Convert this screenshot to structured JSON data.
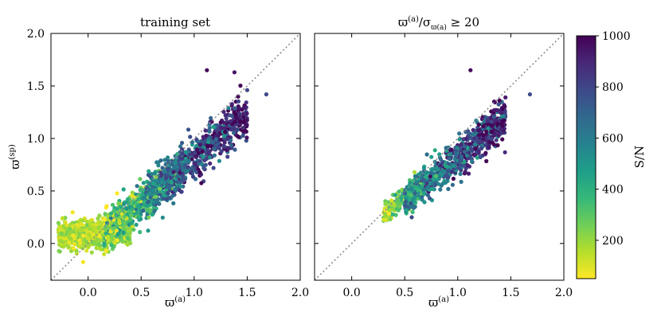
{
  "figure": {
    "colors": {
      "viridis": [
        "#fde725",
        "#b5de2b",
        "#6ece58",
        "#35b779",
        "#1f9e89",
        "#26828e",
        "#31688e",
        "#3e4989",
        "#482878",
        "#440154"
      ],
      "diagonal": "#8c8c8c"
    }
  },
  "chart_data": [
    {
      "type": "scatter",
      "title": "training set",
      "xlabel": "ϖ(a)",
      "ylabel": "ϖ(sp)",
      "xlim": [
        -0.35,
        2.0
      ],
      "ylim": [
        -0.35,
        2.0
      ],
      "xticks": [
        0.0,
        0.5,
        1.0,
        1.5,
        2.0
      ],
      "yticks": [
        0.0,
        0.5,
        1.0,
        1.5,
        2.0
      ],
      "xtick_labels": [
        "0.0",
        "0.5",
        "1.0",
        "1.5",
        "2.0"
      ],
      "ytick_labels": [
        "0.0",
        "0.5",
        "1.0",
        "1.5",
        "2.0"
      ],
      "reference_line": "y = x",
      "color_by": "S/N",
      "n_points": 2400,
      "clusters": [
        {
          "x_range": [
            -0.3,
            0.4
          ],
          "y_mean_offset": 0.05,
          "sn_range": [
            60,
            260
          ]
        },
        {
          "x_range": [
            0.2,
            0.9
          ],
          "y_mean_factor": 0.8,
          "sn_range": [
            200,
            700
          ]
        },
        {
          "x_range": [
            0.6,
            1.5
          ],
          "y_mean_factor": 0.82,
          "sn_range": [
            500,
            1000
          ]
        }
      ],
      "outliers": [
        [
          1.12,
          1.65,
          980
        ],
        [
          1.38,
          1.63,
          950
        ],
        [
          1.68,
          1.42,
          780
        ],
        [
          1.5,
          1.46,
          800
        ]
      ]
    },
    {
      "type": "scatter",
      "title": "ϖ(a)/σϖ(a) ≥ 20",
      "xlabel": "ϖ(a)",
      "ylabel": "",
      "xlim": [
        -0.35,
        2.0
      ],
      "ylim": [
        -0.35,
        2.0
      ],
      "xticks": [
        0.0,
        0.5,
        1.0,
        1.5,
        2.0
      ],
      "xtick_labels": [
        "0.0",
        "0.5",
        "1.0",
        "1.5",
        "2.0"
      ],
      "reference_line": "y = x",
      "color_by": "S/N",
      "n_points": 900,
      "clusters": [
        {
          "x_range": [
            0.3,
            0.6
          ],
          "y_mean_factor": 0.85,
          "sn_range": [
            150,
            500
          ]
        },
        {
          "x_range": [
            0.55,
            1.45
          ],
          "y_mean_factor": 0.82,
          "sn_range": [
            450,
            1000
          ]
        }
      ],
      "outliers": [
        [
          1.12,
          1.65,
          980
        ],
        [
          1.68,
          1.42,
          780
        ],
        [
          1.4,
          1.25,
          900
        ]
      ]
    }
  ],
  "colorbar": {
    "label": "S/N",
    "range": [
      50,
      1000
    ],
    "ticks": [
      200,
      400,
      600,
      800,
      1000
    ],
    "tick_labels": [
      "200",
      "400",
      "600",
      "800",
      "1000"
    ]
  }
}
